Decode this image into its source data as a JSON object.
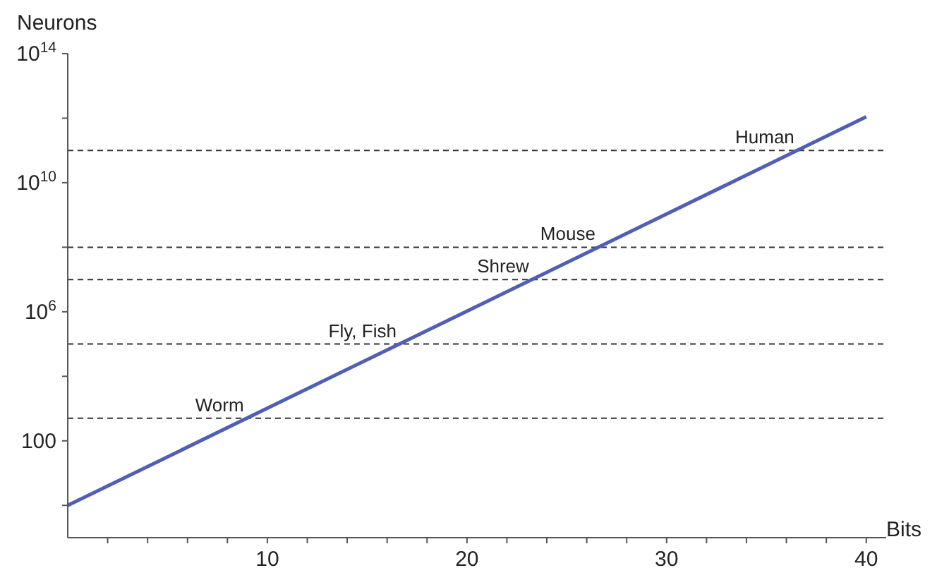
{
  "chart_data": {
    "type": "line",
    "xlabel": "Bits",
    "ylabel": "Neurons",
    "x": [
      0,
      10,
      20,
      30,
      40
    ],
    "series": [
      {
        "color": "#4f5fb8",
        "values": [
          1,
          1024,
          1048576,
          1073741824,
          1099511627776
        ]
      }
    ],
    "log": "y",
    "xlim": [
      0,
      41
    ],
    "ylim": [
      0.1,
      100000000000000
    ],
    "xticks": [
      {
        "value": 2,
        "label": null
      },
      {
        "value": 4,
        "label": null
      },
      {
        "value": 6,
        "label": null
      },
      {
        "value": 8,
        "label": null
      },
      10,
      {
        "value": 12,
        "label": null
      },
      {
        "value": 14,
        "label": null
      },
      {
        "value": 16,
        "label": null
      },
      {
        "value": 18,
        "label": null
      },
      20,
      {
        "value": 22,
        "label": null
      },
      {
        "value": 24,
        "label": null
      },
      {
        "value": 26,
        "label": null
      },
      {
        "value": 28,
        "label": null
      },
      30,
      {
        "value": 32,
        "label": null
      },
      {
        "value": 34,
        "label": null
      },
      {
        "value": 36,
        "label": null
      },
      {
        "value": 38,
        "label": null
      },
      40
    ],
    "yticks": [
      {
        "value": 1,
        "label": null
      },
      100,
      {
        "value": 10000,
        "label": null
      },
      {
        "value": 1000000,
        "label": "10$^{6}$"
      },
      {
        "value": 100000000,
        "label": null
      },
      {
        "value": 10000000000,
        "label": "10$^{10}$"
      },
      {
        "value": 1000000000000,
        "label": null
      },
      {
        "value": 100000000000000,
        "label": "10$^{14}$"
      }
    ],
    "ref_lines": [
      {
        "axis": "y",
        "value": 500,
        "label": "Worm",
        "color": "#333333",
        "line_style": "dashed"
      },
      {
        "axis": "y",
        "value": 100000,
        "label": "Fly, Fish",
        "color": "#333333",
        "line_style": "dashed"
      },
      {
        "axis": "y",
        "value": 10000000,
        "label": "Shrew",
        "color": "#333333",
        "line_style": "dashed"
      },
      {
        "axis": "y",
        "value": 100000000,
        "label": "Mouse",
        "color": "#333333",
        "line_style": "dashed"
      },
      {
        "axis": "y",
        "value": 100000000000,
        "label": "Human",
        "color": "#333333",
        "line_style": "dashed"
      }
    ],
    "grid": false,
    "legend": false,
    "marker": "none",
    "line_style": "solid"
  }
}
